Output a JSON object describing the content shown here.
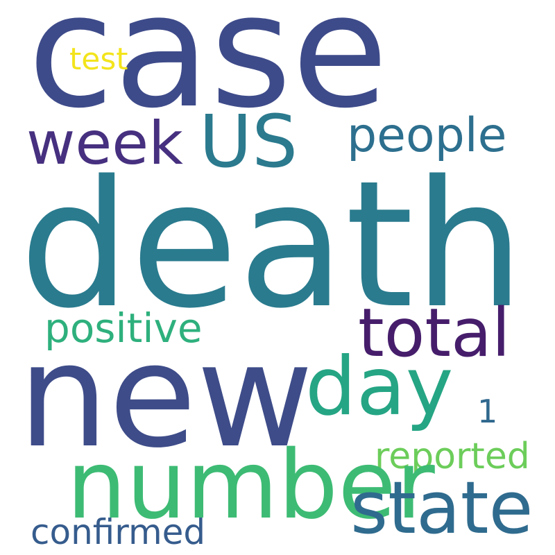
{
  "words": [
    {
      "id": "case",
      "text": "case",
      "color": "#3e4b8a"
    },
    {
      "id": "death",
      "text": "death",
      "color": "#2a7b8e"
    },
    {
      "id": "new",
      "text": "new",
      "color": "#3e4c89"
    },
    {
      "id": "number",
      "text": "number",
      "color": "#3dbb74"
    },
    {
      "id": "total",
      "text": "total",
      "color": "#461d6b"
    },
    {
      "id": "state",
      "text": "state",
      "color": "#2f6b8e"
    },
    {
      "id": "day",
      "text": "day",
      "color": "#25a584"
    },
    {
      "id": "US",
      "text": "US",
      "color": "#2b7a8e"
    },
    {
      "id": "week",
      "text": "week",
      "color": "#46307f"
    },
    {
      "id": "people",
      "text": "people",
      "color": "#2d6f8e"
    },
    {
      "id": "positive",
      "text": "positive",
      "color": "#2eb07d"
    },
    {
      "id": "reported",
      "text": "reported",
      "color": "#6ccd5a"
    },
    {
      "id": "confirmed",
      "text": "confirmed",
      "color": "#365c8d"
    },
    {
      "id": "test",
      "text": "test",
      "color": "#f3e41c"
    },
    {
      "id": "one",
      "text": "1",
      "color": "#30688e"
    }
  ]
}
